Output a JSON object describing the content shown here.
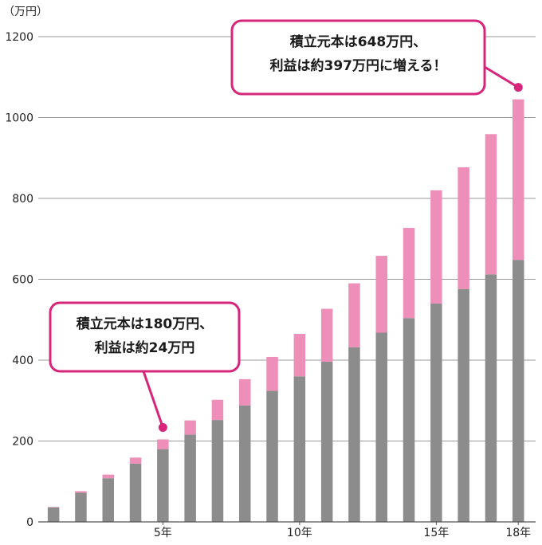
{
  "chart_data": {
    "type": "bar",
    "stacked": true,
    "y_unit_label": "（万円）",
    "ylim": [
      0,
      1200
    ],
    "y_ticks": [
      "0",
      "200",
      "400",
      "600",
      "800",
      "1000",
      "1200"
    ],
    "x_tick_labels": [
      {
        "year": 5,
        "label": "5年"
      },
      {
        "year": 10,
        "label": "10年"
      },
      {
        "year": 15,
        "label": "15年"
      },
      {
        "year": 18,
        "label": "18年"
      }
    ],
    "grid": true,
    "years": [
      1,
      2,
      3,
      4,
      5,
      6,
      7,
      8,
      9,
      10,
      11,
      12,
      13,
      14,
      15,
      16,
      17,
      18
    ],
    "series": [
      {
        "color": "#8c8c8c",
        "values": [
          36,
          72,
          108,
          144,
          180,
          216,
          252,
          288,
          324,
          360,
          396,
          432,
          468,
          504,
          540,
          576,
          612,
          648
        ]
      },
      {
        "color": "#ee8fb9",
        "values": [
          1,
          4,
          9,
          15,
          24,
          35,
          50,
          65,
          84,
          105,
          131,
          158,
          190,
          223,
          280,
          301,
          347,
          397
        ]
      }
    ],
    "annotations": [
      {
        "lines": [
          "積立元本は180万円、",
          "利益は約24万円"
        ],
        "year": 5
      },
      {
        "lines": [
          "積立元本は648万円、",
          "利益は約397万円に増える！"
        ],
        "year": 18
      }
    ],
    "annotation_color": "#d6257a"
  }
}
